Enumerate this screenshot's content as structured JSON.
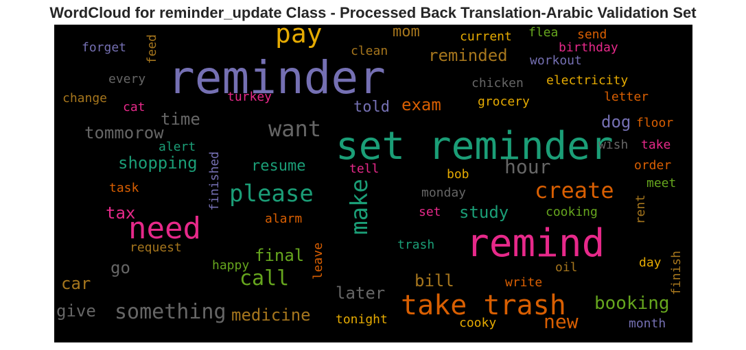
{
  "chart_data": {
    "type": "wordcloud",
    "title": "WordCloud for reminder_update Class - Processed Back Translation-Arabic Validation Set",
    "background": "#000000",
    "palette": [
      "#7570b3",
      "#1b9e77",
      "#e7298a",
      "#d95f02",
      "#66a61e",
      "#e6ab02",
      "#a6761d",
      "#666666"
    ],
    "words": [
      {
        "text": "reminder",
        "color": "#7570b3"
      },
      {
        "text": "set reminder",
        "color": "#1b9e77"
      },
      {
        "text": "remind",
        "color": "#e7298a"
      },
      {
        "text": "need",
        "color": "#e7298a"
      },
      {
        "text": "take trash",
        "color": "#d95f02"
      },
      {
        "text": "pay",
        "color": "#e6ab02"
      },
      {
        "text": "please",
        "color": "#1b9e77"
      },
      {
        "text": "want",
        "color": "#666666"
      },
      {
        "text": "create",
        "color": "#d95f02"
      },
      {
        "text": "make",
        "color": "#1b9e77"
      },
      {
        "text": "something",
        "color": "#666666"
      },
      {
        "text": "hour",
        "color": "#666666"
      },
      {
        "text": "call",
        "color": "#66a61e"
      },
      {
        "text": "new",
        "color": "#d95f02"
      },
      {
        "text": "medicine",
        "color": "#a6761d"
      },
      {
        "text": "booking",
        "color": "#66a61e"
      },
      {
        "text": "reminded",
        "color": "#a6761d"
      },
      {
        "text": "time",
        "color": "#666666"
      },
      {
        "text": "tommorow",
        "color": "#666666"
      },
      {
        "text": "shopping",
        "color": "#1b9e77"
      },
      {
        "text": "give",
        "color": "#666666"
      },
      {
        "text": "later",
        "color": "#666666"
      },
      {
        "text": "exam",
        "color": "#d95f02"
      },
      {
        "text": "told",
        "color": "#7570b3"
      },
      {
        "text": "resume",
        "color": "#1b9e77"
      },
      {
        "text": "study",
        "color": "#1b9e77"
      },
      {
        "text": "dog",
        "color": "#7570b3"
      },
      {
        "text": "final",
        "color": "#66a61e"
      },
      {
        "text": "bill",
        "color": "#a6761d"
      },
      {
        "text": "car",
        "color": "#a6761d"
      },
      {
        "text": "tax",
        "color": "#e7298a"
      },
      {
        "text": "go",
        "color": "#666666"
      },
      {
        "text": "mom",
        "color": "#a6761d"
      },
      {
        "text": "current",
        "color": "#e6ab02"
      },
      {
        "text": "flea",
        "color": "#66a61e"
      },
      {
        "text": "send",
        "color": "#d95f02"
      },
      {
        "text": "birthday",
        "color": "#e7298a"
      },
      {
        "text": "workout",
        "color": "#7570b3"
      },
      {
        "text": "forget",
        "color": "#7570b3"
      },
      {
        "text": "feed",
        "color": "#a6761d"
      },
      {
        "text": "clean",
        "color": "#a6761d"
      },
      {
        "text": "every",
        "color": "#666666"
      },
      {
        "text": "chicken",
        "color": "#666666"
      },
      {
        "text": "electricity",
        "color": "#e6ab02"
      },
      {
        "text": "change",
        "color": "#a6761d"
      },
      {
        "text": "cat",
        "color": "#e7298a"
      },
      {
        "text": "turkey",
        "color": "#e7298a"
      },
      {
        "text": "grocery",
        "color": "#e6ab02"
      },
      {
        "text": "letter",
        "color": "#d95f02"
      },
      {
        "text": "floor",
        "color": "#d95f02"
      },
      {
        "text": "alert",
        "color": "#1b9e77"
      },
      {
        "text": "wish",
        "color": "#666666"
      },
      {
        "text": "take",
        "color": "#e7298a"
      },
      {
        "text": "finished",
        "color": "#7570b3"
      },
      {
        "text": "tell",
        "color": "#e7298a"
      },
      {
        "text": "bob",
        "color": "#e6ab02"
      },
      {
        "text": "order",
        "color": "#d95f02"
      },
      {
        "text": "task",
        "color": "#d95f02"
      },
      {
        "text": "meet",
        "color": "#66a61e"
      },
      {
        "text": "monday",
        "color": "#666666"
      },
      {
        "text": "rent",
        "color": "#a6761d"
      },
      {
        "text": "set",
        "color": "#e7298a"
      },
      {
        "text": "cooking",
        "color": "#66a61e"
      },
      {
        "text": "alarm",
        "color": "#d95f02"
      },
      {
        "text": "request",
        "color": "#a6761d"
      },
      {
        "text": "trash",
        "color": "#1b9e77"
      },
      {
        "text": "leave",
        "color": "#d95f02"
      },
      {
        "text": "happy",
        "color": "#66a61e"
      },
      {
        "text": "oil",
        "color": "#a6761d"
      },
      {
        "text": "day",
        "color": "#e6ab02"
      },
      {
        "text": "finish",
        "color": "#a6761d"
      },
      {
        "text": "write",
        "color": "#d95f02"
      },
      {
        "text": "tonight",
        "color": "#e6ab02"
      },
      {
        "text": "cooky",
        "color": "#e6ab02"
      },
      {
        "text": "month",
        "color": "#7570b3"
      }
    ]
  }
}
